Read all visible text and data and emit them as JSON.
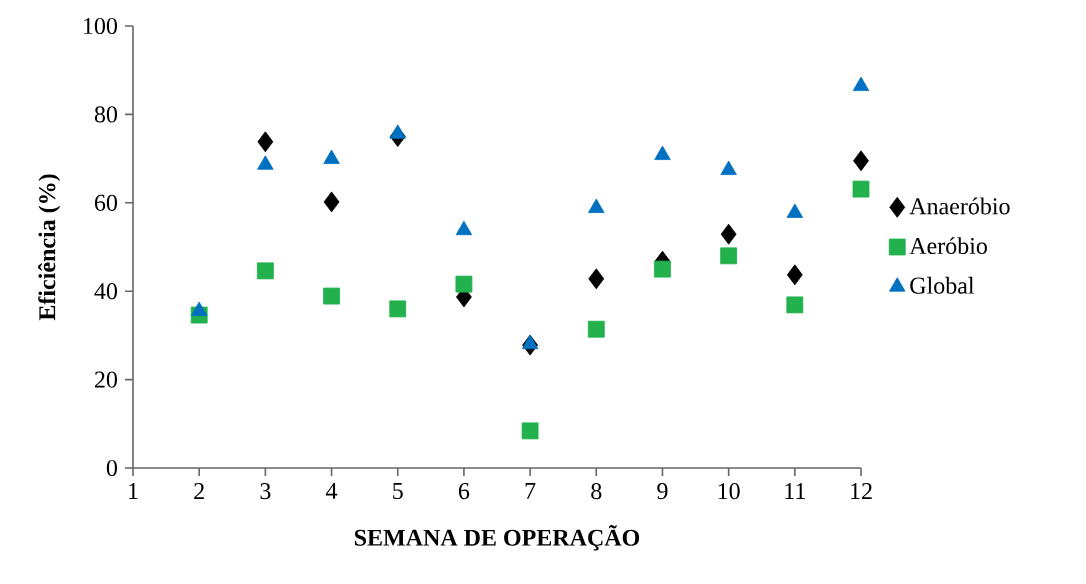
{
  "chart_data": {
    "type": "scatter",
    "xlabel": "SEMANA DE OPERAÇÃO",
    "ylabel": "Eficiência (%)",
    "x": [
      2,
      3,
      4,
      5,
      6,
      7,
      8,
      9,
      10,
      11,
      12
    ],
    "series": [
      {
        "name": "Anaeróbio",
        "color": "#000000",
        "marker": "diamond",
        "values": [
          null,
          73.8,
          60.2,
          75,
          38.7,
          27.8,
          42.8,
          46.8,
          52.9,
          43.7,
          69.5
        ]
      },
      {
        "name": "Aeróbio",
        "color": "#22b14c",
        "marker": "square",
        "values": [
          34.6,
          44.6,
          38.9,
          36,
          41.6,
          8.4,
          31.4,
          45,
          48,
          36.9,
          63.1
        ]
      },
      {
        "name": "Global",
        "color": "#0070c0",
        "marker": "triangle",
        "values": [
          35.5,
          68.6,
          69.9,
          75.6,
          53.8,
          28,
          58.8,
          70.8,
          67.4,
          57.7,
          86.4
        ]
      }
    ],
    "xlim": [
      1,
      12
    ],
    "xticks": [
      1,
      2,
      3,
      4,
      5,
      6,
      7,
      8,
      9,
      10,
      11,
      12
    ],
    "ylim": [
      0,
      100
    ],
    "yticks": [
      0,
      20,
      40,
      60,
      80,
      100
    ],
    "legend": "right",
    "grid": false
  }
}
